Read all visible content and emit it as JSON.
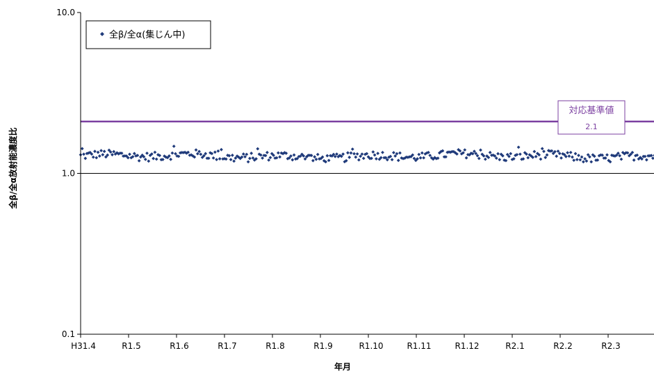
{
  "chart_data": {
    "type": "scatter",
    "title": "",
    "xlabel": "年月",
    "ylabel": "全β/全α放射能濃度比",
    "y_scale": "log",
    "ylim": [
      0.1,
      10.0
    ],
    "y_ticks": [
      "0.1",
      "1.0",
      "10.0"
    ],
    "x_ticks": [
      "H31.4",
      "R1.5",
      "R1.6",
      "R1.7",
      "R1.8",
      "R1.9",
      "R1.10",
      "R1.11",
      "R1.12",
      "R2.1",
      "R2.2",
      "R2.3"
    ],
    "x_unit": "month",
    "x_range_months": [
      0,
      12
    ],
    "grid": "horizontal line at 1.0",
    "legend_position": "top-left",
    "series": [
      {
        "name": "全β/全α(集じん中)",
        "color": "#1f3a7a",
        "marker": "diamond",
        "point_count": 365,
        "typical_value": 1.28,
        "typical_range": [
          1.18,
          1.45
        ],
        "note": "daily values, roughly constant around 1.2–1.4 through the year"
      }
    ],
    "reference_line": {
      "label": "対応基準値",
      "value_label": "2.1",
      "value": 2.1,
      "color": "#7b3fa0"
    }
  }
}
